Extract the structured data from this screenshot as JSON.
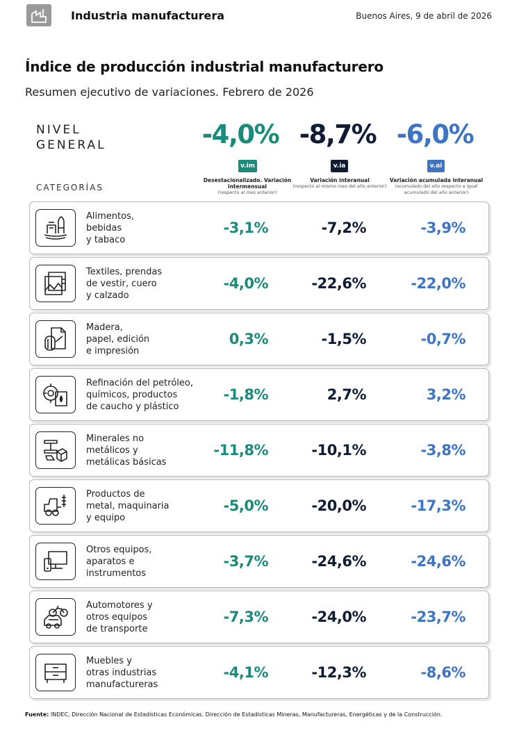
{
  "header": {
    "title": "Industria manufacturera",
    "date": "Buenos Aires, 9 de abril de 2026"
  },
  "page": {
    "title": "Índice de producción industrial manufacturero",
    "subtitle": "Resumen ejecutivo de variaciones. Febrero de 2026"
  },
  "nivel_general": {
    "label_line1": "NIVEL",
    "label_line2": "GENERAL",
    "values": [
      "-4,0%",
      "-8,7%",
      "-6,0%"
    ]
  },
  "columns": [
    {
      "badge": "v.im",
      "title": "Desestacionalizado. Variación intermensual",
      "note": "(respecto al mes anterior)",
      "color": "#1a8a7b"
    },
    {
      "badge": "v.ia",
      "title": "Variación interanual",
      "note": "(respecto al mismo mes del año anterior)",
      "color": "#0f1c33"
    },
    {
      "badge": "v.ai",
      "title": "Variación acumulada interanual",
      "note": "(acumulado del año respecto a igual acumulado del año anterior)",
      "color": "#3d74c4"
    }
  ],
  "categorias_label": "CATEGORÍAS",
  "categories": [
    {
      "icon": "food-icon",
      "label": "Alimentos,\nbebidas\ny tabaco",
      "vim": "-3,1%",
      "via": "-7,2%",
      "vai": "-3,9%"
    },
    {
      "icon": "textile-icon",
      "label": "Textiles, prendas\nde vestir, cuero\ny calzado",
      "vim": "-4,0%",
      "via": "-22,6%",
      "vai": "-22,0%"
    },
    {
      "icon": "paper-icon",
      "label": "Madera,\npapel, edición\ne impresión",
      "vim": "0,3%",
      "via": "-1,5%",
      "vai": "-0,7%"
    },
    {
      "icon": "chemicals-icon",
      "label": "Refinación del petróleo,\nquímicos, productos\nde caucho y plástico",
      "vim": "-1,8%",
      "via": "2,7%",
      "vai": "3,2%"
    },
    {
      "icon": "minerals-icon",
      "label": "Minerales no\nmetálicos y\nmetálicas básicas",
      "vim": "-11,8%",
      "via": "-10,1%",
      "vai": "-3,8%"
    },
    {
      "icon": "machinery-icon",
      "label": "Productos de\nmetal, maquinaria\ny equipo",
      "vim": "-5,0%",
      "via": "-20,0%",
      "vai": "-17,3%"
    },
    {
      "icon": "equipment-icon",
      "label": "Otros equipos,\naparatos e\ninstrumentos",
      "vim": "-3,7%",
      "via": "-24,6%",
      "vai": "-24,6%"
    },
    {
      "icon": "vehicles-icon",
      "label": "Automotores y\notros equipos\nde transporte",
      "vim": "-7,3%",
      "via": "-24,0%",
      "vai": "-23,7%"
    },
    {
      "icon": "furniture-icon",
      "label": "Muebles y\notras industrias\nmanufactureras",
      "vim": "-4,1%",
      "via": "-12,3%",
      "vai": "-8,6%"
    }
  ],
  "footer": {
    "label": "Fuente:",
    "text": " INDEC, Dirección Nacional de Estadísticas Económicas. Dirección de Estadísticas Mineras, Manufactureras, Energéticas y de la Construcción."
  }
}
